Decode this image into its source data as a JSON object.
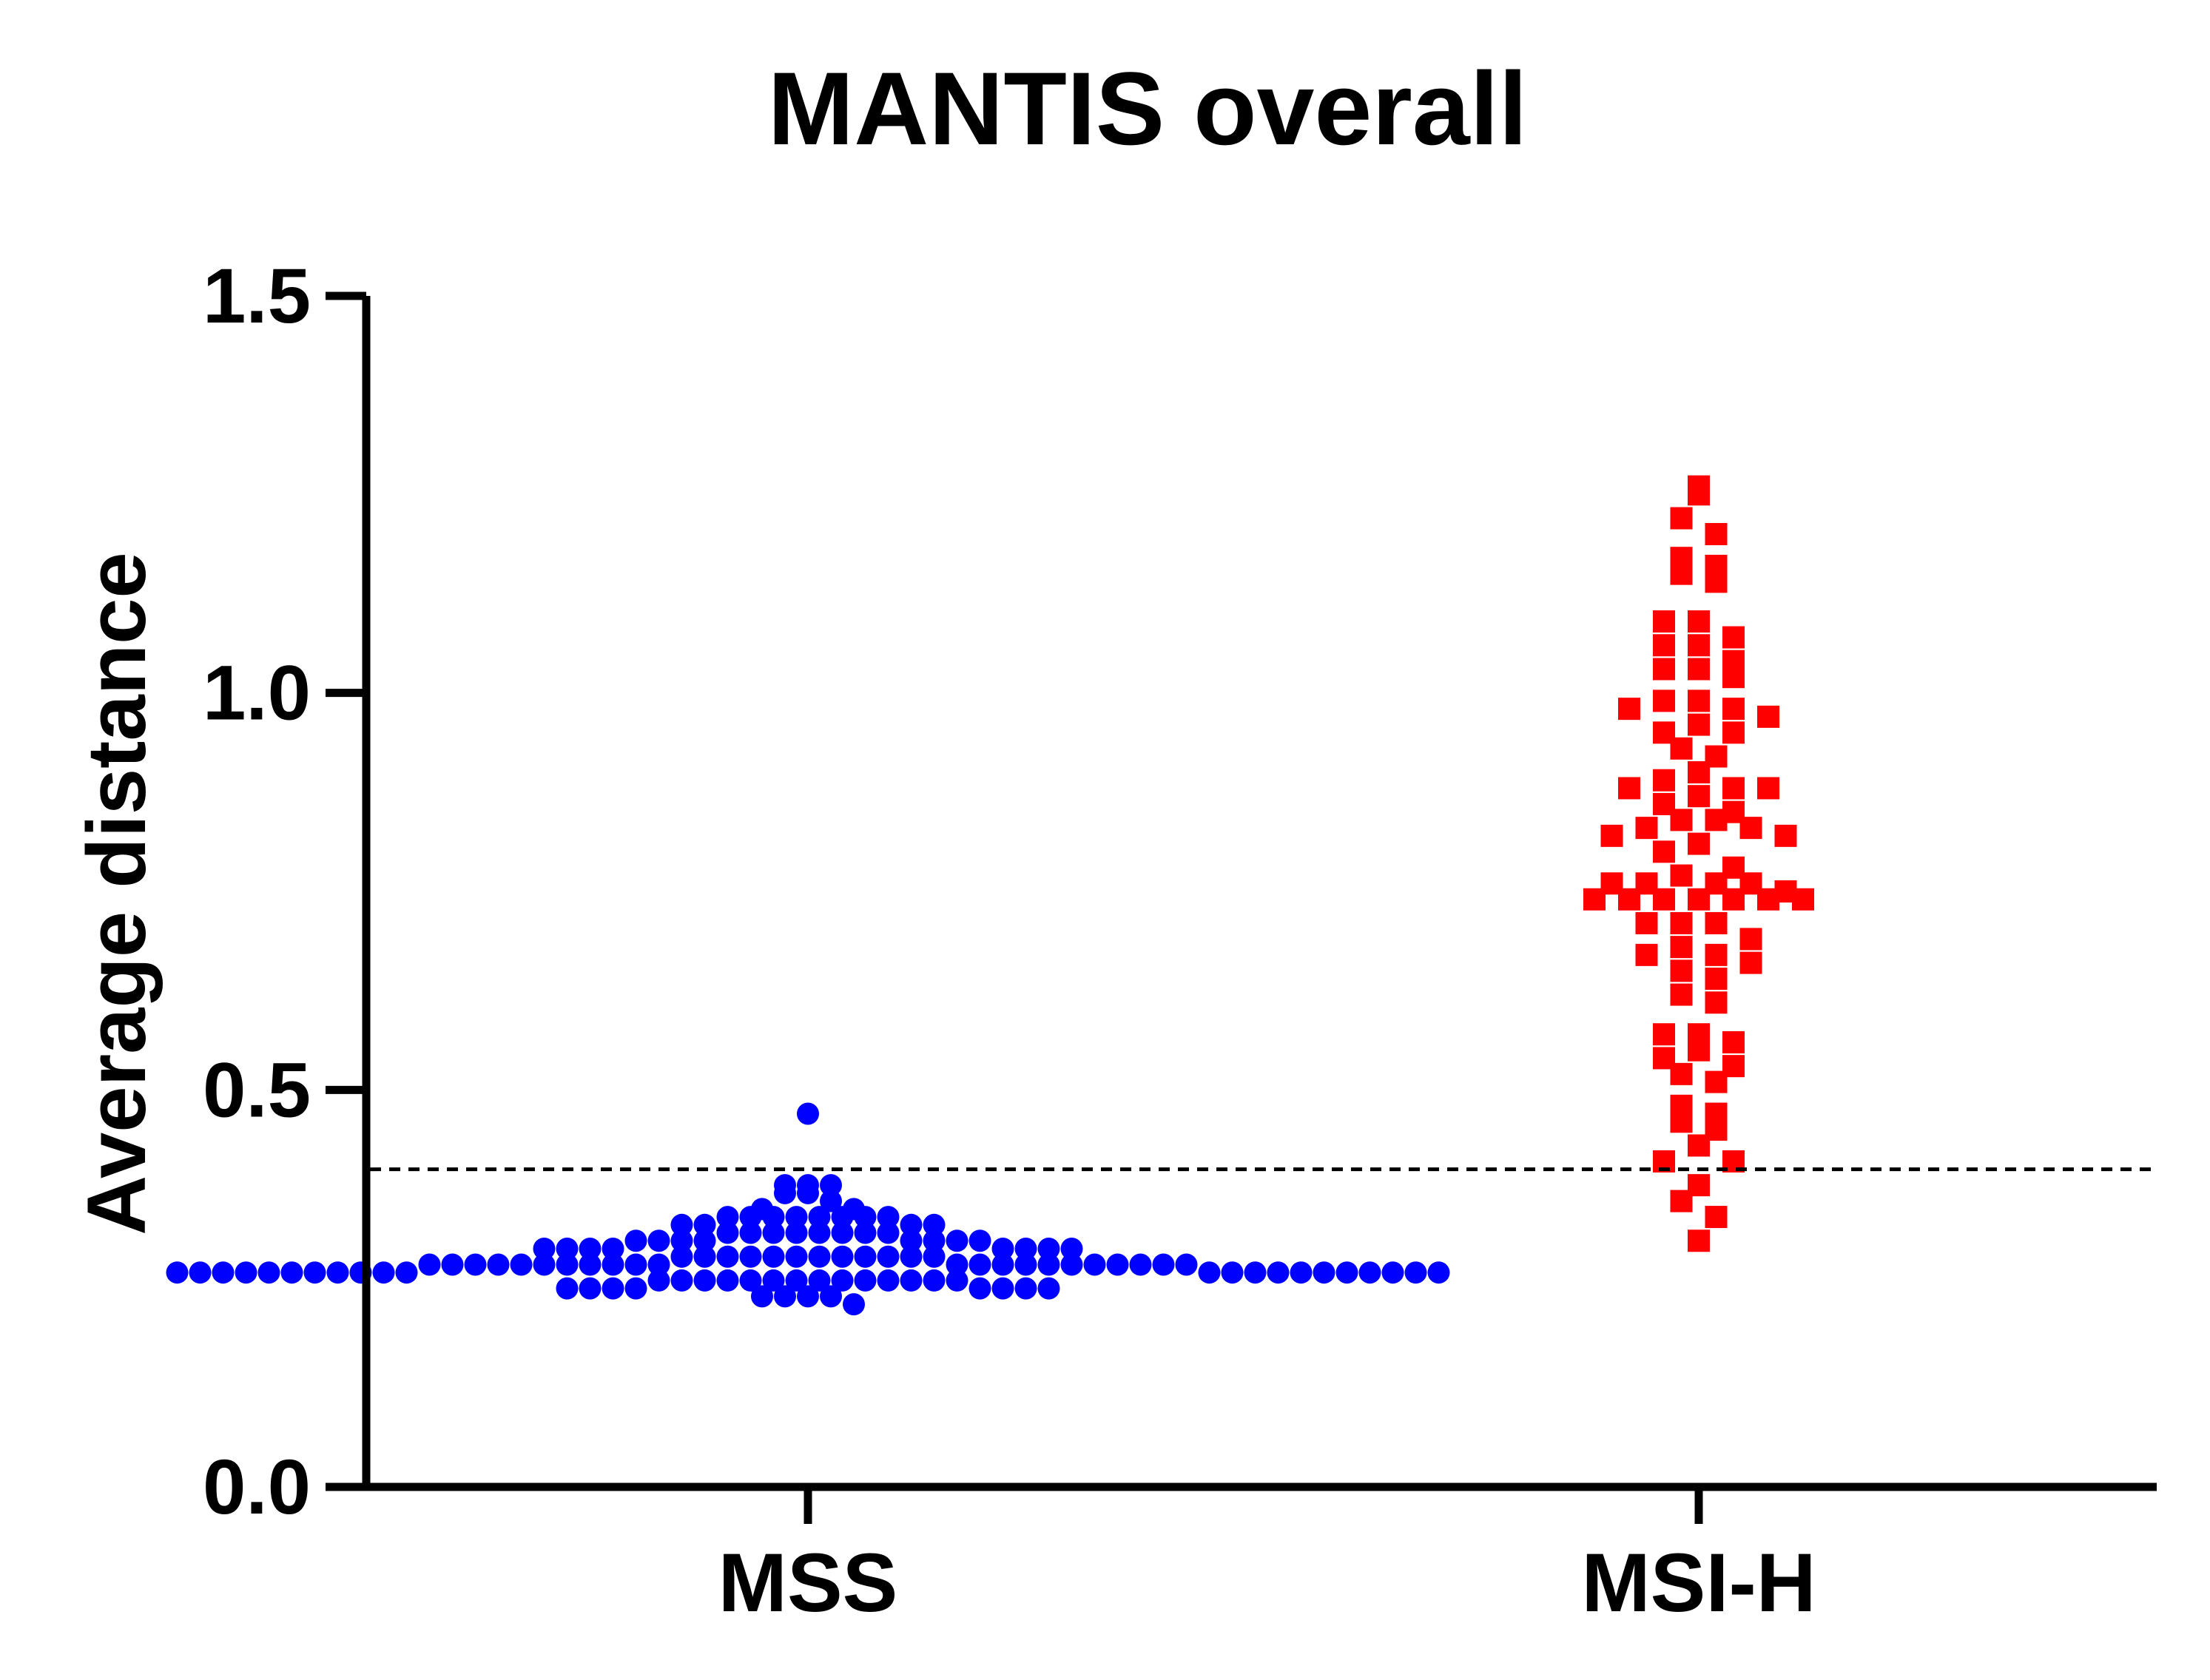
{
  "chart_data": {
    "type": "scatter",
    "title": "MANTIS overall",
    "ylabel": "Average distance",
    "xlabel": "",
    "categories": [
      "MSS",
      "MSI-H"
    ],
    "ylim": [
      0,
      1.5
    ],
    "yticks": [
      "0.0",
      "0.5",
      "1.0",
      "1.5"
    ],
    "ytick_values": [
      0,
      0.5,
      1.0,
      1.5
    ],
    "threshold": 0.4,
    "grid": false,
    "series": [
      {
        "color": "#0000ff",
        "marker": "circle",
        "values": [
          0.47,
          0.38,
          0.38,
          0.38,
          0.37,
          0.37,
          0.36,
          0.35,
          0.35,
          0.34,
          0.34,
          0.34,
          0.34,
          0.34,
          0.34,
          0.34,
          0.34,
          0.33,
          0.33,
          0.33,
          0.33,
          0.32,
          0.32,
          0.32,
          0.32,
          0.32,
          0.32,
          0.32,
          0.32,
          0.31,
          0.31,
          0.31,
          0.31,
          0.31,
          0.31,
          0.31,
          0.31,
          0.3,
          0.3,
          0.3,
          0.3,
          0.3,
          0.3,
          0.3,
          0.3,
          0.29,
          0.29,
          0.29,
          0.29,
          0.29,
          0.29,
          0.29,
          0.29,
          0.29,
          0.29,
          0.29,
          0.29,
          0.28,
          0.28,
          0.28,
          0.28,
          0.28,
          0.28,
          0.28,
          0.28,
          0.28,
          0.28,
          0.28,
          0.28,
          0.28,
          0.28,
          0.28,
          0.28,
          0.28,
          0.28,
          0.28,
          0.28,
          0.28,
          0.28,
          0.27,
          0.27,
          0.27,
          0.27,
          0.27,
          0.27,
          0.27,
          0.27,
          0.27,
          0.27,
          0.27,
          0.27,
          0.27,
          0.27,
          0.27,
          0.27,
          0.27,
          0.27,
          0.27,
          0.27,
          0.27,
          0.27,
          0.26,
          0.26,
          0.26,
          0.26,
          0.26,
          0.26,
          0.26,
          0.26,
          0.26,
          0.26,
          0.26,
          0.26,
          0.26,
          0.26,
          0.25,
          0.25,
          0.25,
          0.25,
          0.25,
          0.25,
          0.25,
          0.25,
          0.24,
          0.24,
          0.24,
          0.24,
          0.23
        ]
      },
      {
        "color": "#ff0000",
        "marker": "square",
        "values": [
          1.26,
          1.25,
          1.22,
          1.2,
          1.17,
          1.16,
          1.15,
          1.14,
          1.09,
          1.09,
          1.07,
          1.06,
          1.06,
          1.04,
          1.03,
          1.03,
          1.02,
          0.99,
          0.99,
          0.98,
          0.98,
          0.97,
          0.96,
          0.95,
          0.95,
          0.93,
          0.92,
          0.9,
          0.89,
          0.88,
          0.88,
          0.88,
          0.87,
          0.86,
          0.85,
          0.84,
          0.84,
          0.83,
          0.83,
          0.82,
          0.82,
          0.81,
          0.8,
          0.78,
          0.77,
          0.76,
          0.76,
          0.76,
          0.76,
          0.75,
          0.74,
          0.74,
          0.74,
          0.74,
          0.74,
          0.74,
          0.74,
          0.71,
          0.71,
          0.71,
          0.69,
          0.68,
          0.67,
          0.67,
          0.66,
          0.65,
          0.64,
          0.62,
          0.61,
          0.57,
          0.57,
          0.56,
          0.55,
          0.54,
          0.53,
          0.52,
          0.51,
          0.48,
          0.47,
          0.46,
          0.45,
          0.43,
          0.41,
          0.41,
          0.38,
          0.36,
          0.34,
          0.31
        ]
      }
    ]
  }
}
